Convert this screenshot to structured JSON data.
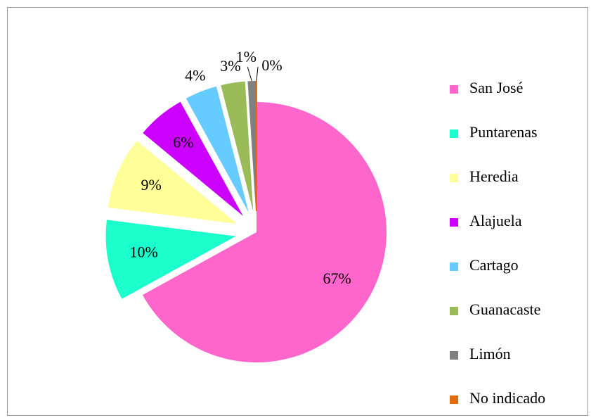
{
  "chart_data": {
    "type": "pie",
    "categories": [
      "San José",
      "Puntarenas",
      "Heredia",
      "Alajuela",
      "Cartago",
      "Guanacaste",
      "Limón",
      "No indicado"
    ],
    "values": [
      67,
      10,
      9,
      6,
      4,
      3,
      1,
      0
    ],
    "value_labels": [
      "67%",
      "10%",
      "9%",
      "6%",
      "4%",
      "3%",
      "1%",
      "0%"
    ],
    "colors": [
      "#ff66cc",
      "#1affcc",
      "#ffff99",
      "#cc00ff",
      "#66ccff",
      "#9bbb59",
      "#808080",
      "#e36c0a"
    ],
    "legend": "right"
  }
}
